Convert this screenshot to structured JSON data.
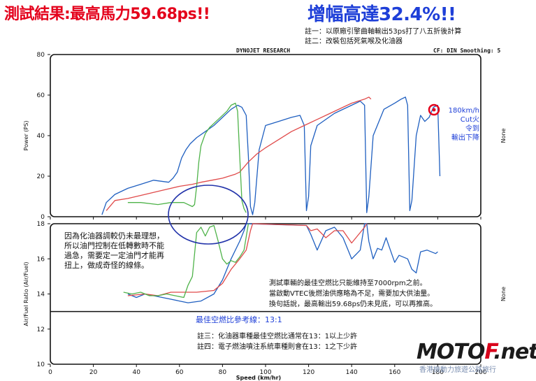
{
  "header": {
    "title_left": "測試結果:最高馬力59.68ps!!",
    "title_right": "增幅高達32.4%!!",
    "note1": "註一：以原廠引擎曲軸輸出53ps打了八五折後計算",
    "note2": "註二：改裝包括死氣喉及化油器"
  },
  "chart_head": {
    "brand": "DYNOJET RESEARCH",
    "settings": "CF: DIN  Smoothing: 5"
  },
  "chart_data": [
    {
      "type": "line",
      "ylabel": "Power (PS)",
      "xlabel": "Speed (km/hr)",
      "xlim": [
        0,
        200
      ],
      "ylim": [
        0,
        80
      ],
      "xticks": [
        "0",
        "20",
        "40",
        "60",
        "80",
        "100",
        "120",
        "140",
        "160",
        "180",
        "200"
      ],
      "yticks": [
        "0",
        "20",
        "40",
        "60",
        "80"
      ],
      "right_label": "None",
      "series": [
        {
          "color": "#1f5fc0",
          "points": [
            [
              24,
              1
            ],
            [
              26,
              7
            ],
            [
              30,
              11
            ],
            [
              36,
              14
            ],
            [
              42,
              16
            ],
            [
              48,
              18
            ],
            [
              55,
              17
            ],
            [
              57,
              19
            ],
            [
              59,
              22
            ],
            [
              61,
              29
            ],
            [
              63,
              33
            ],
            [
              65,
              36
            ],
            [
              68,
              39
            ],
            [
              72,
              42
            ],
            [
              76,
              45
            ],
            [
              80,
              49
            ],
            [
              84,
              53
            ],
            [
              87,
              55
            ],
            [
              89,
              54
            ],
            [
              91,
              50
            ],
            [
              92,
              30
            ],
            [
              93,
              5
            ],
            [
              94,
              1
            ],
            [
              95,
              7
            ],
            [
              97,
              33
            ],
            [
              100,
              45
            ],
            [
              106,
              47
            ],
            [
              112,
              49
            ],
            [
              116,
              50
            ],
            [
              118,
              45
            ],
            [
              119,
              3
            ],
            [
              120,
              10
            ],
            [
              121,
              35
            ],
            [
              124,
              45
            ],
            [
              132,
              51
            ],
            [
              140,
              55
            ],
            [
              144,
              57
            ],
            [
              146,
              55
            ],
            [
              147,
              2
            ],
            [
              148,
              10
            ],
            [
              150,
              40
            ],
            [
              155,
              53
            ],
            [
              160,
              56
            ],
            [
              163,
              58
            ],
            [
              165,
              59
            ],
            [
              166,
              55
            ],
            [
              167,
              3
            ],
            [
              168,
              8
            ],
            [
              170,
              40
            ],
            [
              172,
              50
            ],
            [
              174,
              47
            ],
            [
              176,
              49
            ],
            [
              178,
              54
            ],
            [
              180,
              55
            ],
            [
              181,
              20
            ]
          ]
        },
        {
          "color": "#e04a4a",
          "points": [
            [
              26,
              3
            ],
            [
              30,
              8
            ],
            [
              36,
              9
            ],
            [
              44,
              11
            ],
            [
              52,
              13
            ],
            [
              60,
              15
            ],
            [
              66,
              16
            ],
            [
              70,
              17
            ],
            [
              75,
              18
            ],
            [
              80,
              19
            ],
            [
              86,
              21
            ],
            [
              88,
              22
            ],
            [
              92,
              27
            ],
            [
              96,
              31
            ],
            [
              100,
              34
            ],
            [
              106,
              38
            ],
            [
              112,
              42
            ],
            [
              118,
              45
            ],
            [
              124,
              48
            ],
            [
              130,
              51
            ],
            [
              136,
              54
            ],
            [
              140,
              56
            ],
            [
              146,
              58
            ],
            [
              148,
              59
            ],
            [
              149,
              58
            ]
          ]
        },
        {
          "color": "#4fb34a",
          "points": [
            [
              36,
              7
            ],
            [
              42,
              7
            ],
            [
              50,
              6
            ],
            [
              56,
              7
            ],
            [
              62,
              7
            ],
            [
              66,
              5
            ],
            [
              67,
              6
            ],
            [
              68,
              15
            ],
            [
              69,
              27
            ],
            [
              70,
              35
            ],
            [
              72,
              41
            ],
            [
              74,
              44
            ],
            [
              78,
              48
            ],
            [
              82,
              52
            ],
            [
              84,
              55
            ],
            [
              86,
              56
            ],
            [
              87,
              52
            ],
            [
              88,
              30
            ],
            [
              89,
              8
            ],
            [
              90,
              4
            ],
            [
              91,
              2
            ]
          ]
        }
      ]
    },
    {
      "type": "line",
      "ylabel": "Air/Fuel Ratio (Air/Fuel)",
      "xlabel": "Speed (km/hr)",
      "xlim": [
        0,
        200
      ],
      "ylim": [
        10,
        18
      ],
      "xticks": [
        "0",
        "20",
        "40",
        "60",
        "80",
        "100",
        "120",
        "140",
        "160",
        "180",
        "200"
      ],
      "yticks": [
        "10",
        "12",
        "14",
        "16",
        "18"
      ],
      "right_label": "None",
      "series": [
        {
          "color": "#1f5fc0",
          "points": [
            [
              36,
              14
            ],
            [
              40,
              13.8
            ],
            [
              44,
              14
            ],
            [
              48,
              13.9
            ],
            [
              52,
              13.8
            ],
            [
              56,
              13.7
            ],
            [
              60,
              13.6
            ],
            [
              64,
              13.5
            ],
            [
              70,
              13.6
            ],
            [
              76,
              14
            ],
            [
              80,
              14.8
            ],
            [
              84,
              16
            ],
            [
              88,
              17
            ],
            [
              90,
              17.6
            ],
            [
              91,
              18
            ],
            [
              119,
              17.9
            ],
            [
              121,
              17.4
            ],
            [
              124,
              16.5
            ],
            [
              128,
              17.6
            ],
            [
              132,
              17.8
            ],
            [
              136,
              17.2
            ],
            [
              140,
              16
            ],
            [
              144,
              16.5
            ],
            [
              146,
              18
            ],
            [
              147,
              18
            ],
            [
              148,
              17
            ],
            [
              150,
              16
            ],
            [
              152,
              16.6
            ],
            [
              154,
              16.5
            ],
            [
              156,
              17.2
            ],
            [
              158,
              16.5
            ],
            [
              160,
              15.8
            ],
            [
              162,
              16.2
            ],
            [
              166,
              16
            ],
            [
              168,
              15.4
            ],
            [
              170,
              15.2
            ],
            [
              172,
              16.4
            ],
            [
              175,
              16.5
            ],
            [
              179,
              16.3
            ],
            [
              180,
              16.4
            ]
          ]
        },
        {
          "color": "#e04a4a",
          "points": [
            [
              36,
              13.9
            ],
            [
              44,
              14
            ],
            [
              50,
              13.9
            ],
            [
              56,
              14.1
            ],
            [
              62,
              14.1
            ],
            [
              68,
              14.1
            ],
            [
              76,
              14.2
            ],
            [
              80,
              14.6
            ],
            [
              84,
              15.4
            ],
            [
              88,
              16
            ],
            [
              91,
              16.5
            ],
            [
              93,
              17.6
            ],
            [
              94,
              18
            ],
            [
              119,
              17.9
            ],
            [
              121,
              17.6
            ],
            [
              124,
              17.7
            ],
            [
              128,
              17.2
            ],
            [
              132,
              17.6
            ],
            [
              136,
              17.6
            ],
            [
              140,
              16.9
            ],
            [
              146,
              17.8
            ],
            [
              147,
              18
            ]
          ]
        },
        {
          "color": "#4fb34a",
          "points": [
            [
              34,
              14.1
            ],
            [
              38,
              14
            ],
            [
              42,
              14.1
            ],
            [
              46,
              13.9
            ],
            [
              50,
              13.9
            ],
            [
              54,
              14
            ],
            [
              58,
              13.9
            ],
            [
              62,
              13.8
            ],
            [
              64,
              14.5
            ],
            [
              66,
              15
            ],
            [
              68,
              17.5
            ],
            [
              70,
              17.8
            ],
            [
              72,
              17.3
            ],
            [
              74,
              17.8
            ],
            [
              76,
              17.9
            ],
            [
              78,
              17
            ],
            [
              80,
              16
            ],
            [
              82,
              15.7
            ],
            [
              84,
              15.9
            ],
            [
              86,
              15.8
            ],
            [
              88,
              16.1
            ],
            [
              90,
              16.5
            ],
            [
              92,
              18
            ]
          ]
        }
      ],
      "reference_line": {
        "value": 13,
        "label": "最佳空燃比參考線：13:1"
      }
    }
  ],
  "annotations": {
    "carb_note": [
      "因為化油器調較仍未最理想，",
      "所以油門控制在低轉數時不能",
      "過急，需要定一定油門才能再",
      "扭上，做成奇怪的線條。"
    ],
    "vtec_note": [
      "測試車輛的最佳空燃比只能維持至7000rpm之前。",
      "當啟動VTEC後燃油供應略為不足，需要加大供油量。",
      "換句話說，最高輸出59.68ps仍未見底，可以再推高。"
    ],
    "cut_note": [
      "180km/h",
      "Cut火",
      "令到",
      "輸出下降"
    ],
    "ref_label": "最佳空燃比參考線：13:1",
    "note3": "註三：化油器車種最佳空燃比通常在13：1以上少許",
    "note4": "註四：電子燃油噴注系統車種則會在13：1之下少許"
  },
  "brand": {
    "name_a": "MOTO",
    "name_b": "F",
    "name_c": ".net",
    "tagline": "香港機動力旅遊公路旅行"
  },
  "colors": {
    "blue": "#1f5fc0",
    "red": "#e04a4a",
    "green": "#4fb34a",
    "title_red": "#e4001b",
    "title_blue": "#1e3fd8"
  }
}
